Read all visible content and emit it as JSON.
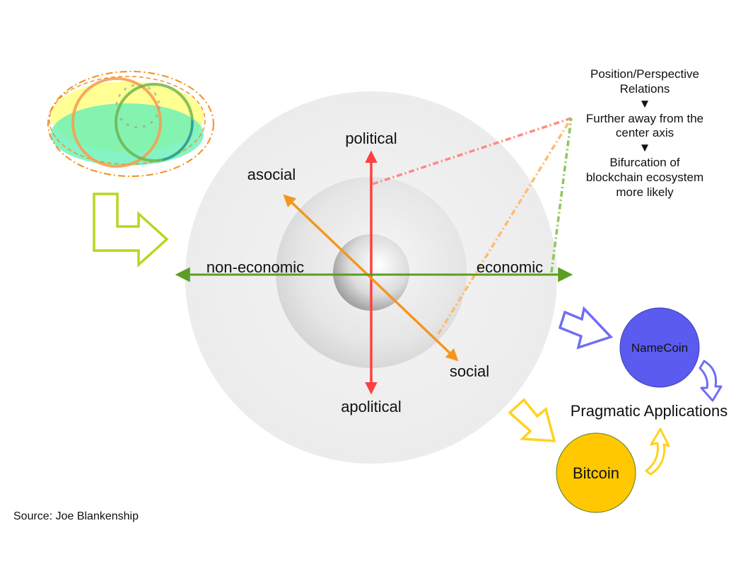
{
  "axes": {
    "political": "political",
    "apolitical": "apolitical",
    "asocial": "asocial",
    "social": "social",
    "non_economic": "non-economic",
    "economic": "economic"
  },
  "notes": {
    "line1": "Position/Perspective",
    "line2": "Relations",
    "arrow1": "▼",
    "line3": "Further away from the",
    "line4": "center axis",
    "arrow2": "▼",
    "line5": "Bifurcation of",
    "line6": "blockchain ecosystem",
    "line7": "more likely"
  },
  "nodes": {
    "namecoin": "NameCoin",
    "bitcoin": "Bitcoin",
    "pragmatic": "Pragmatic Applications"
  },
  "source": "Source: Joe Blankenship",
  "colors": {
    "political_axis": "#ff4040",
    "social_axis": "#f5961e",
    "economic_axis": "#5a9e22",
    "namecoin": "#5b5bf0",
    "bitcoin": "#ffc800",
    "lime_arrow": "#b5d81e"
  }
}
